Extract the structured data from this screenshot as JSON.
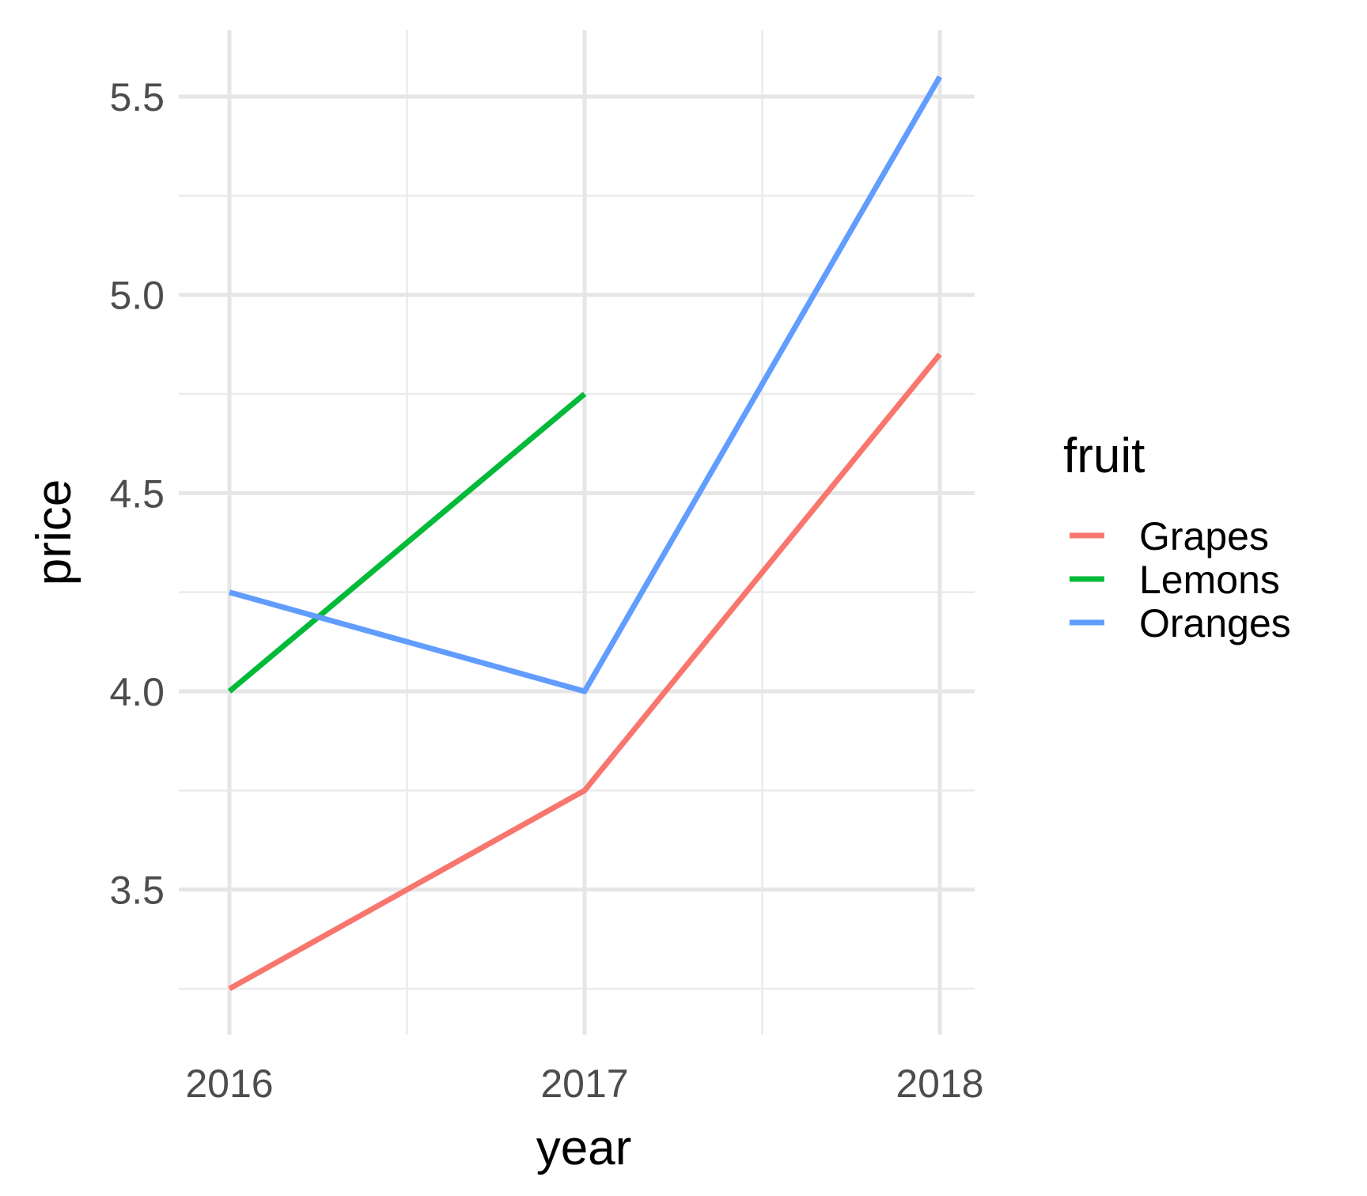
{
  "chart_data": {
    "type": "line",
    "title": "",
    "xlabel": "year",
    "ylabel": "price",
    "x": [
      2016,
      2017,
      2018
    ],
    "x_tick_labels": [
      "2016",
      "2017",
      "2018"
    ],
    "y_ticks": [
      3.5,
      4.0,
      4.5,
      5.0,
      5.5
    ],
    "y_tick_labels": [
      "3.5",
      "4.0",
      "4.5",
      "5.0",
      "5.5"
    ],
    "xlim": [
      2016,
      2018
    ],
    "ylim": [
      3.25,
      5.55
    ],
    "grid": true,
    "legend": {
      "title": "fruit",
      "placement": "right"
    },
    "series": [
      {
        "name": "Grapes",
        "color": "#F8766D",
        "x": [
          2016,
          2017,
          2018
        ],
        "values": [
          3.25,
          3.75,
          4.85
        ]
      },
      {
        "name": "Lemons",
        "color": "#00BA38",
        "x": [
          2016,
          2017
        ],
        "values": [
          4.0,
          4.75
        ]
      },
      {
        "name": "Oranges",
        "color": "#619CFF",
        "x": [
          2016,
          2017,
          2018
        ],
        "values": [
          4.25,
          4.0,
          5.55
        ]
      }
    ]
  }
}
